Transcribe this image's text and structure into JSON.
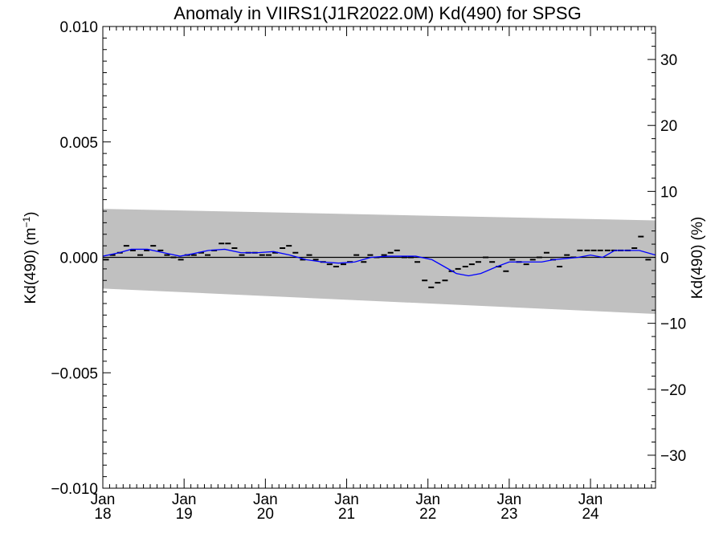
{
  "chart_data": {
    "type": "line",
    "title": "Anomaly in VIIRS1(J1R2022.0M) Kd(490) for SPSG",
    "ylabel": "Kd(490) (m",
    "ylabel_sup": "−1",
    "ylabel_close": ")",
    "y2label": "Kd(490) (%)",
    "ylim": [
      -0.01,
      0.01
    ],
    "y2lim": [
      -35,
      35
    ],
    "yticks": [
      -0.01,
      -0.005,
      0.0,
      0.005,
      0.01
    ],
    "ytick_labels": [
      "−0.010",
      "−0.005",
      "0.000",
      "0.005",
      "0.010"
    ],
    "y2ticks": [
      -30,
      -20,
      -10,
      0,
      10,
      20,
      30
    ],
    "y2tick_labels": [
      "−30",
      "−20",
      "−10",
      "0",
      "10",
      "20",
      "30"
    ],
    "xlim": [
      2018.0,
      2024.8
    ],
    "xticks": [
      2018,
      2019,
      2020,
      2021,
      2022,
      2023,
      2024
    ],
    "xtick_month": [
      "Jan",
      "Jan",
      "Jan",
      "Jan",
      "Jan",
      "Jan",
      "Jan"
    ],
    "xtick_year": [
      "18",
      "19",
      "20",
      "21",
      "22",
      "23",
      "24"
    ],
    "grid": false,
    "zero_line": true,
    "colors": {
      "band": "#c0c0c0",
      "smooth": "#0000ff",
      "points": "#000000",
      "zero": "#000000"
    },
    "band": {
      "x": [
        2018.0,
        2024.8
      ],
      "upper": [
        0.0021,
        0.0016
      ],
      "lower": [
        -0.00135,
        -0.00245
      ]
    },
    "series": [
      {
        "kind": "monthly",
        "x": [
          2018.04,
          2018.12,
          2018.21,
          2018.29,
          2018.37,
          2018.46,
          2018.54,
          2018.62,
          2018.71,
          2018.79,
          2018.87,
          2018.96,
          2019.04,
          2019.12,
          2019.21,
          2019.29,
          2019.37,
          2019.46,
          2019.54,
          2019.62,
          2019.71,
          2019.79,
          2019.87,
          2019.96,
          2020.04,
          2020.12,
          2020.21,
          2020.29,
          2020.37,
          2020.46,
          2020.54,
          2020.62,
          2020.71,
          2020.79,
          2020.87,
          2020.96,
          2021.04,
          2021.12,
          2021.21,
          2021.29,
          2021.37,
          2021.46,
          2021.54,
          2021.62,
          2021.71,
          2021.79,
          2021.87,
          2021.96,
          2022.04,
          2022.12,
          2022.21,
          2022.29,
          2022.37,
          2022.46,
          2022.54,
          2022.62,
          2022.71,
          2022.79,
          2022.87,
          2022.96,
          2023.04,
          2023.12,
          2023.21,
          2023.29,
          2023.37,
          2023.46,
          2023.54,
          2023.62,
          2023.71,
          2023.79,
          2023.87,
          2023.96,
          2024.04,
          2024.12,
          2024.21,
          2024.29,
          2024.37,
          2024.46,
          2024.54,
          2024.62,
          2024.71
        ],
        "values": [
          -0.0001,
          0.0001,
          0.0002,
          0.0005,
          0.0003,
          0.0001,
          0.0003,
          0.0005,
          0.0003,
          0.0001,
          0.0,
          -0.0001,
          0.0001,
          0.0001,
          0.0002,
          0.0001,
          0.0003,
          0.0006,
          0.0006,
          0.0004,
          0.0001,
          0.0002,
          0.0002,
          0.0001,
          0.0001,
          0.0002,
          0.0004,
          0.0005,
          0.0002,
          -0.0001,
          0.0001,
          -0.0001,
          -0.0002,
          -0.0003,
          -0.0004,
          -0.0003,
          -0.0002,
          0.0001,
          -0.0002,
          0.0001,
          0.0,
          0.0001,
          0.0002,
          0.0003,
          0.0,
          0.0,
          -0.0002,
          -0.001,
          -0.0013,
          -0.0011,
          -0.001,
          -0.0006,
          -0.0005,
          -0.0004,
          -0.0003,
          -0.0002,
          0.0,
          -0.0002,
          -0.0004,
          -0.0006,
          -0.0001,
          -0.0002,
          -0.0003,
          -0.0001,
          0.0,
          0.0002,
          -0.0001,
          -0.0004,
          0.0001,
          0.0,
          0.0003,
          0.0003,
          0.0003,
          0.0003,
          0.0003,
          0.0003,
          0.0003,
          0.0003,
          0.0004,
          0.0009,
          -0.0001
        ]
      },
      {
        "kind": "smoothed",
        "x": [
          2018.0,
          2018.2,
          2018.35,
          2018.55,
          2018.75,
          2018.95,
          2019.1,
          2019.3,
          2019.5,
          2019.7,
          2019.9,
          2020.1,
          2020.3,
          2020.5,
          2020.7,
          2020.9,
          2021.1,
          2021.3,
          2021.5,
          2021.7,
          2021.85,
          2022.05,
          2022.2,
          2022.35,
          2022.5,
          2022.65,
          2022.85,
          2023.0,
          2023.2,
          2023.4,
          2023.55,
          2023.7,
          2023.85,
          2024.0,
          2024.15,
          2024.3,
          2024.45,
          2024.6,
          2024.8
        ],
        "values": [
          5e-05,
          0.0002,
          0.00035,
          0.00035,
          0.0002,
          5e-05,
          0.00015,
          0.0003,
          0.00035,
          0.0002,
          0.0002,
          0.00025,
          0.0001,
          -0.0001,
          -0.0002,
          -0.00025,
          -0.0002,
          0.0,
          5e-05,
          5e-05,
          5e-05,
          -0.0001,
          -0.0004,
          -0.0007,
          -0.0008,
          -0.0007,
          -0.0004,
          -0.0002,
          -0.0002,
          -0.0002,
          -0.0001,
          -5e-05,
          0.0,
          0.0001,
          0.0,
          0.0003,
          0.0003,
          0.0003,
          0.0001
        ]
      }
    ]
  }
}
